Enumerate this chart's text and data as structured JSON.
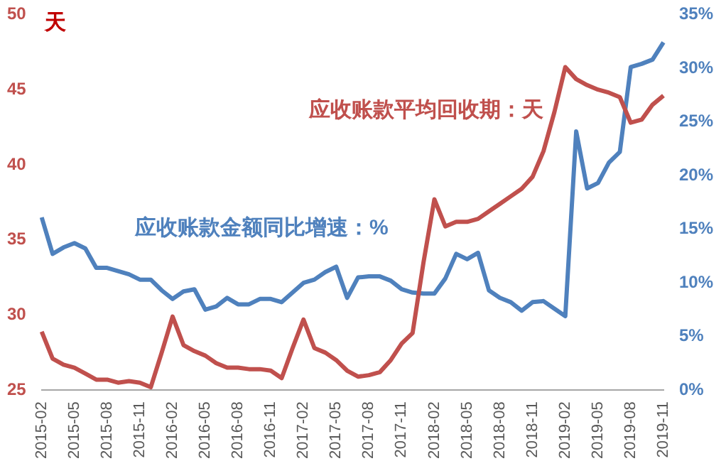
{
  "chart_data": {
    "type": "line",
    "ylabel": "天",
    "categories": [
      "2015-02",
      null,
      null,
      "2015-05",
      null,
      null,
      "2015-08",
      null,
      null,
      "2015-11",
      null,
      null,
      "2016-02",
      null,
      null,
      "2016-05",
      null,
      null,
      "2016-08",
      null,
      null,
      "2016-11",
      null,
      null,
      "2017-02",
      null,
      null,
      "2017-05",
      null,
      null,
      "2017-08",
      null,
      null,
      "2017-11",
      null,
      null,
      "2018-02",
      null,
      null,
      "2018-05",
      null,
      null,
      "2018-08",
      null,
      null,
      "2018-11",
      null,
      null,
      "2019-02",
      null,
      null,
      "2019-05",
      null,
      null,
      "2019-08",
      null,
      null,
      "2019-11"
    ],
    "series": [
      {
        "name": "应收账款平均回收期：天",
        "color": "#c0504d",
        "values": [
          28.9,
          27.1,
          26.7,
          26.5,
          26.1,
          25.7,
          25.7,
          25.5,
          25.6,
          25.5,
          25.2,
          27.5,
          29.9,
          28.0,
          27.6,
          27.3,
          26.8,
          26.5,
          26.5,
          26.4,
          26.4,
          26.3,
          25.8,
          27.8,
          29.7,
          27.8,
          27.5,
          27.0,
          26.3,
          25.9,
          26.0,
          26.2,
          27.0,
          28.1,
          28.8,
          33.5,
          37.7,
          35.9,
          36.2,
          36.2,
          36.4,
          36.9,
          37.4,
          37.9,
          38.4,
          39.2,
          40.9,
          43.5,
          46.5,
          45.7,
          45.3,
          45.0,
          44.8,
          44.5,
          42.8,
          43.0,
          44.0,
          44.6
        ]
      },
      {
        "name": "应收账款金额同比增速：%",
        "color": "#4f81bd",
        "axis": "y2",
        "values": [
          16.1,
          12.7,
          13.3,
          13.7,
          13.2,
          11.4,
          11.4,
          11.1,
          10.8,
          10.3,
          10.3,
          9.3,
          8.5,
          9.2,
          9.4,
          7.5,
          7.8,
          8.6,
          8.0,
          8.0,
          8.5,
          8.5,
          8.2,
          9.1,
          10.0,
          10.3,
          11.0,
          11.5,
          8.6,
          10.5,
          10.6,
          10.6,
          10.2,
          9.4,
          9.1,
          9.0,
          9.0,
          10.4,
          12.7,
          12.2,
          12.8,
          9.3,
          8.6,
          8.2,
          7.4,
          8.2,
          8.3,
          7.6,
          6.9,
          24.1,
          18.8,
          19.3,
          21.2,
          22.2,
          30.1,
          30.4,
          30.8,
          32.4
        ]
      }
    ],
    "ylim": [
      25,
      50
    ],
    "yticks": [
      25,
      30,
      35,
      40,
      45,
      50
    ],
    "y2lim": [
      0,
      35
    ],
    "y2ticks": [
      {
        "value": 0,
        "label": "0%"
      },
      {
        "value": 5,
        "label": "5%"
      },
      {
        "value": 10,
        "label": "10%"
      },
      {
        "value": 15,
        "label": "15%"
      },
      {
        "value": 20,
        "label": "20%"
      },
      {
        "value": 25,
        "label": "25%"
      },
      {
        "value": 30,
        "label": "30%"
      },
      {
        "value": 35,
        "label": "35%"
      }
    ],
    "grid": false,
    "legend": false,
    "marker": "none",
    "line_style": "solid"
  }
}
